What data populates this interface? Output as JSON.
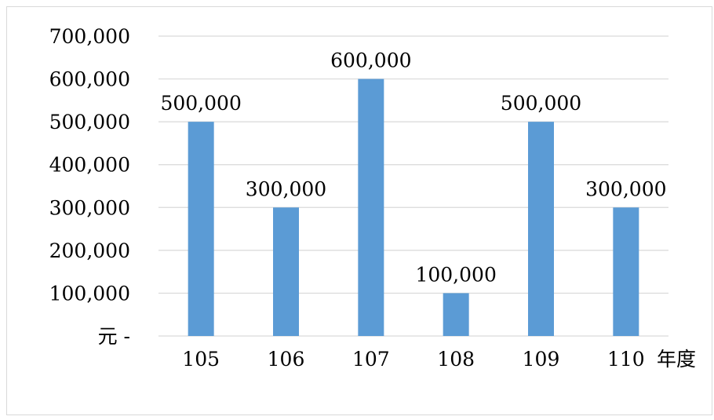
{
  "chart_data": {
    "type": "bar",
    "categories": [
      "105",
      "106",
      "107",
      "108",
      "109",
      "110"
    ],
    "values": [
      500000,
      300000,
      600000,
      100000,
      500000,
      300000
    ],
    "data_labels": [
      "500,000",
      "300,000",
      "600,000",
      "100,000",
      "500,000",
      "300,000"
    ],
    "y_ticks": [
      0,
      100000,
      200000,
      300000,
      400000,
      500000,
      600000,
      700000
    ],
    "y_tick_labels": [
      "元 -",
      "100,000",
      "200,000",
      "300,000",
      "400,000",
      "500,000",
      "600,000",
      "700,000"
    ],
    "x_unit": "年度",
    "title": "",
    "xlabel": "",
    "ylabel": "",
    "ylim": [
      0,
      700000
    ],
    "grid": true,
    "legend": "none",
    "bar_color": "#5b9bd5",
    "grid_color": "#d9d9d9"
  }
}
